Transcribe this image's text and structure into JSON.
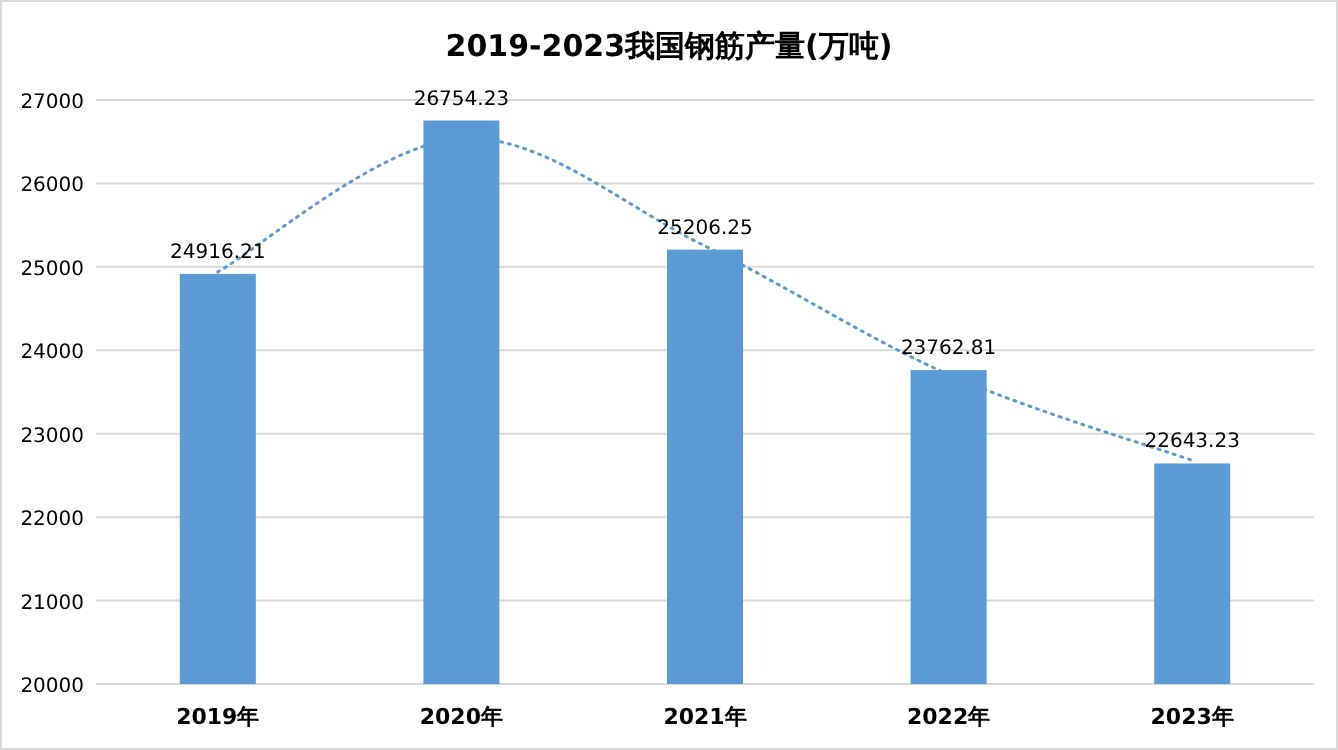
{
  "chart_data": {
    "type": "bar",
    "title": "2019-2023我国钢筋产量(万吨)",
    "categories": [
      "2019年",
      "2020年",
      "2021年",
      "2022年",
      "2023年"
    ],
    "series": [
      {
        "color": "#5b9bd5",
        "values": [
          24916.21,
          26754.23,
          25206.25,
          23762.81,
          22643.23
        ],
        "value_labels": [
          "24916.21",
          "26754.23",
          "25206.25",
          "23762.81",
          "22643.23"
        ]
      },
      {
        "type": "line",
        "color": "#5b9bd5",
        "line_style": "dotted",
        "values": [
          24940,
          26540,
          25250,
          23710,
          22680
        ]
      }
    ],
    "ylim": [
      20000,
      27000
    ],
    "yticks": [
      20000,
      21000,
      22000,
      23000,
      24000,
      25000,
      26000,
      27000
    ],
    "grid": "y"
  }
}
